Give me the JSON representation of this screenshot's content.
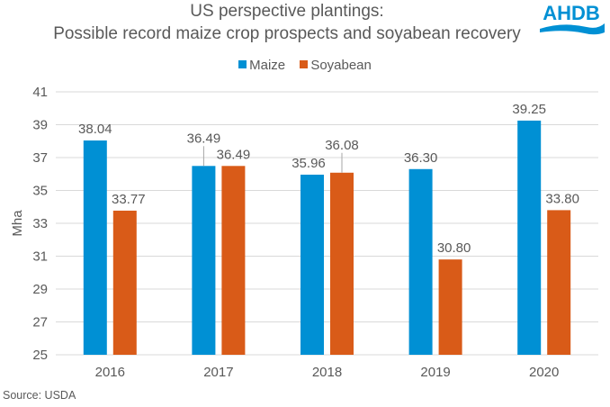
{
  "brand": {
    "logo_text": "AHDB",
    "logo_color": "#0090d4"
  },
  "source": "Source: USDA",
  "chart_data": {
    "type": "bar",
    "title": "US perspective plantings:",
    "subtitle": "Possible record maize crop prospects and soyabean recovery",
    "xlabel": "",
    "ylabel": "Mha",
    "categories": [
      "2016",
      "2017",
      "2018",
      "2019",
      "2020"
    ],
    "series": [
      {
        "name": "Maize",
        "color": "#0090d4",
        "values": [
          38.04,
          36.49,
          35.96,
          36.3,
          39.25
        ],
        "labels": [
          "38.04",
          "36.49",
          "35.96",
          "36.30",
          "39.25"
        ]
      },
      {
        "name": "Soyabean",
        "color": "#d95b18",
        "values": [
          33.77,
          36.49,
          36.08,
          30.8,
          33.8
        ],
        "labels": [
          "33.77",
          "36.49",
          "36.08",
          "30.80",
          "33.80"
        ]
      }
    ],
    "ylim": [
      25,
      41
    ],
    "yticks": [
      25,
      27,
      29,
      31,
      33,
      35,
      37,
      39,
      41
    ],
    "grid": true,
    "legend": "top-center"
  }
}
